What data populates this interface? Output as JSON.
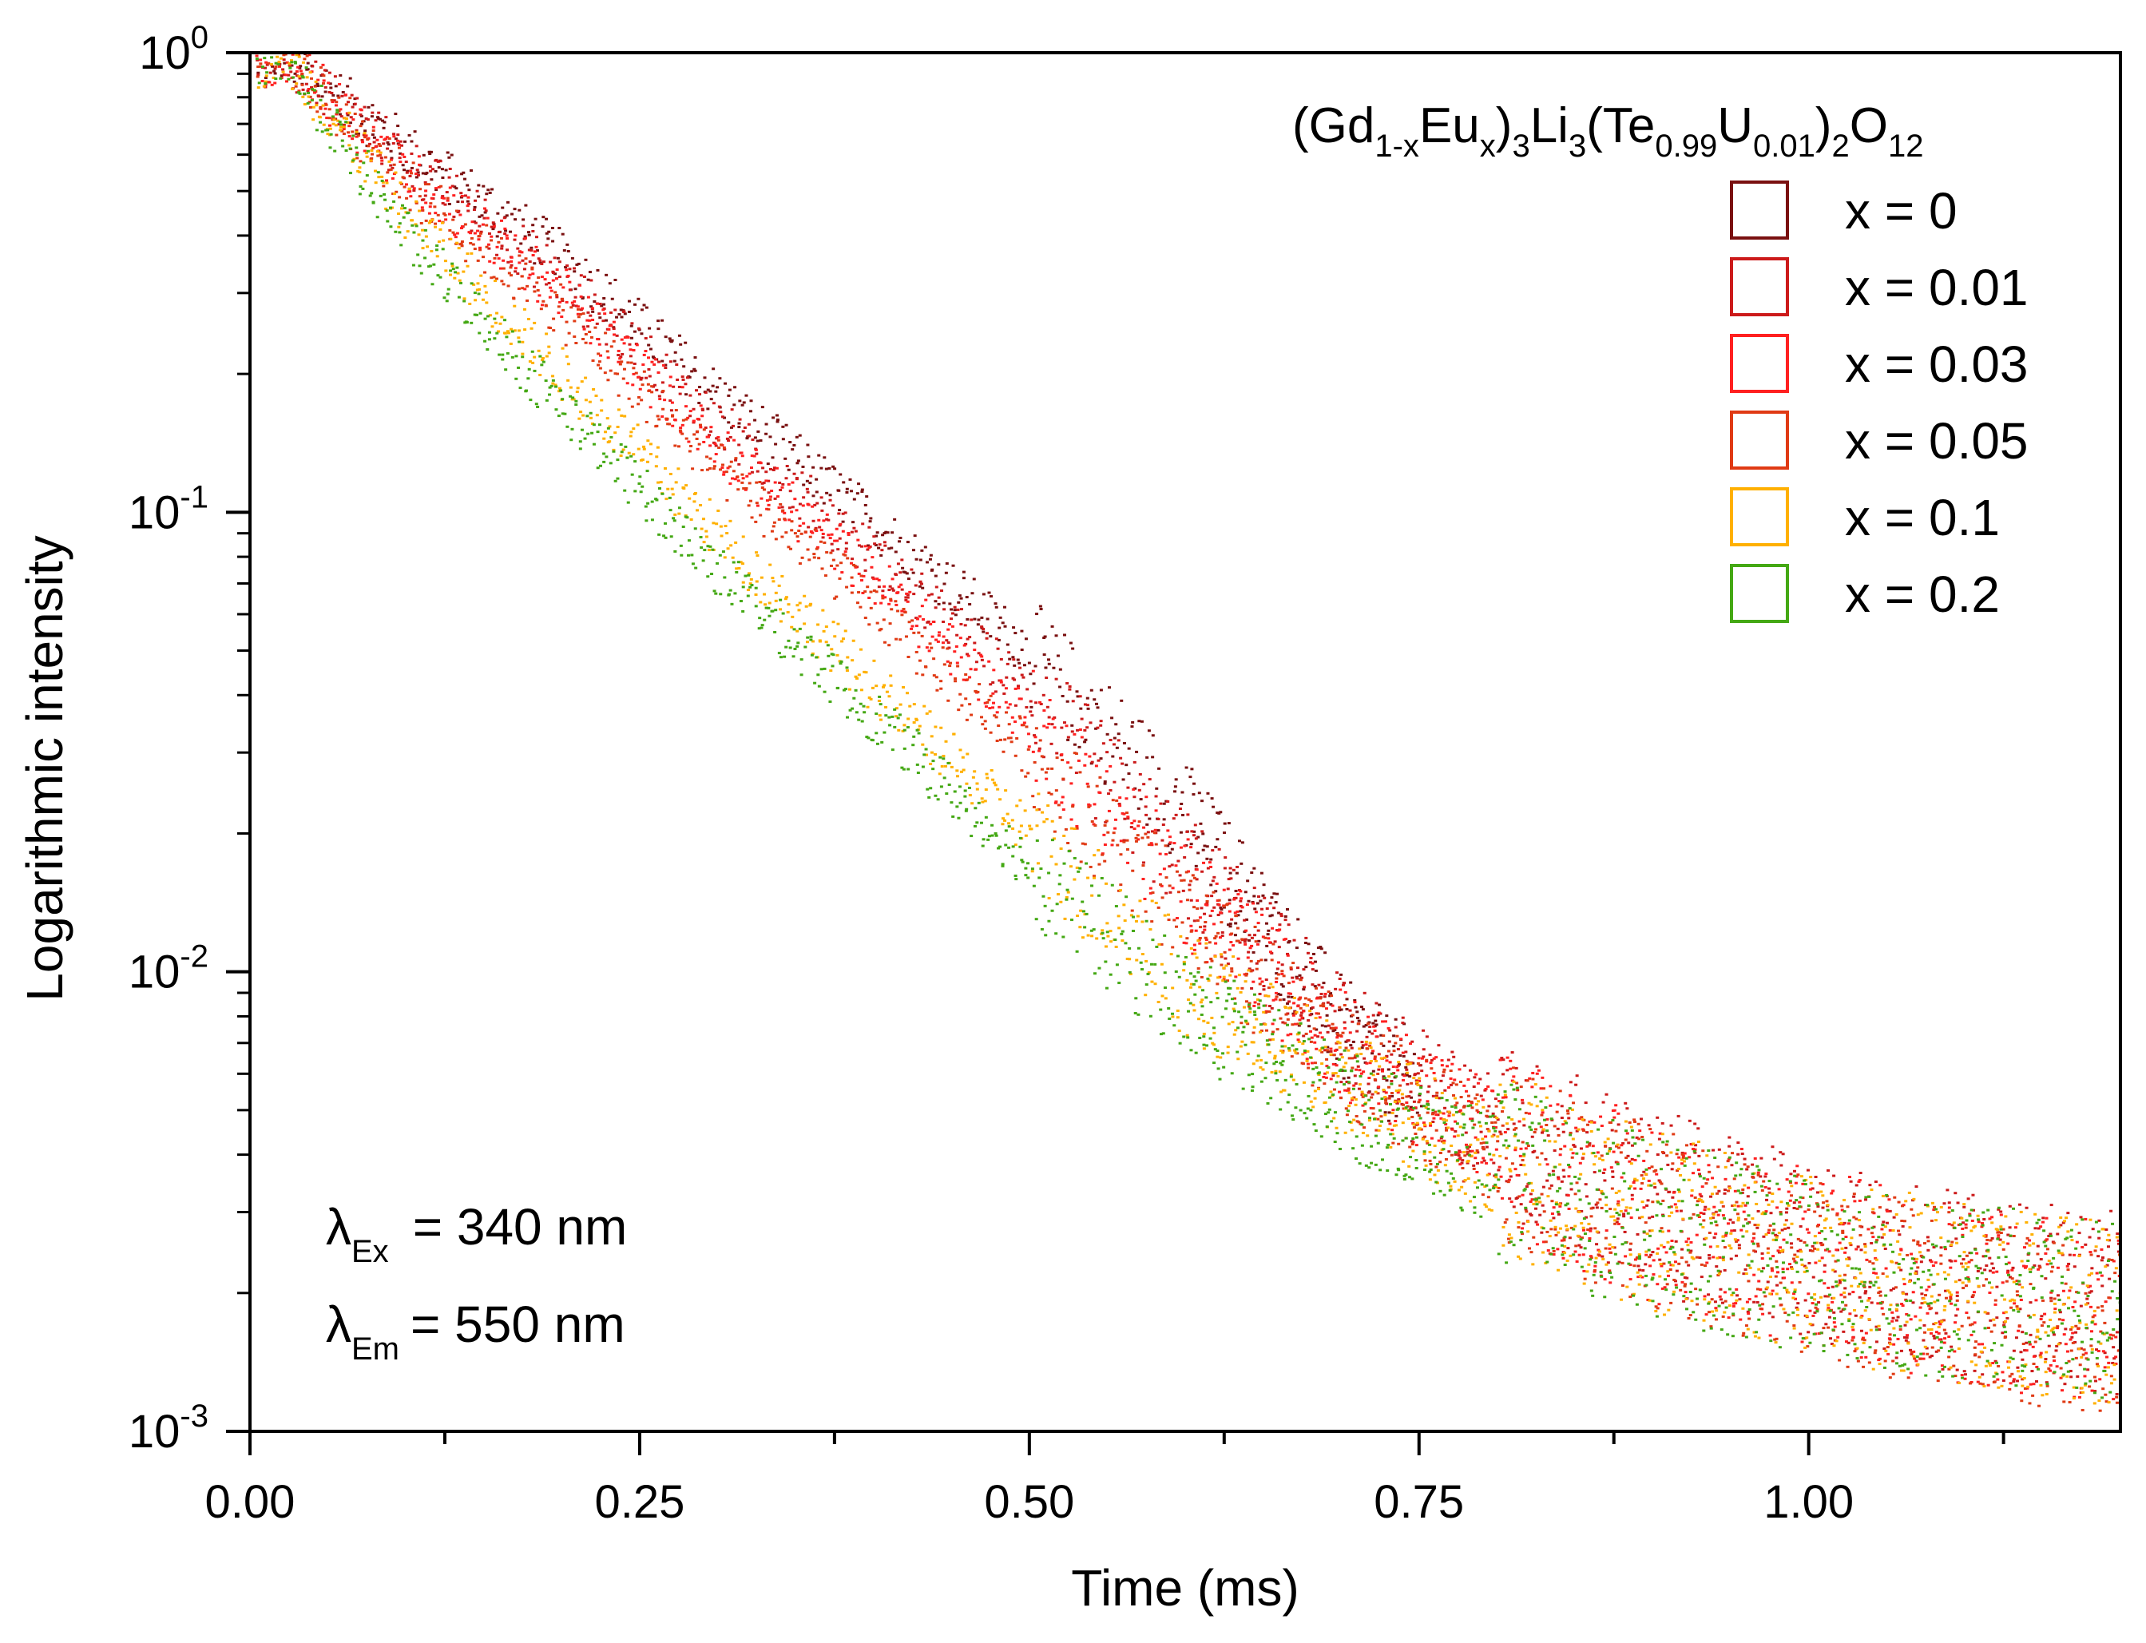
{
  "chart_data": {
    "type": "scatter",
    "title": "",
    "xlabel": "Time (ms)",
    "ylabel": "Logarithmic intensity",
    "xlim": [
      0,
      1.2
    ],
    "ylim": [
      0.001,
      1
    ],
    "yscale": "log",
    "x_tick_labels": [
      "0.00",
      "0.25",
      "0.50",
      "0.75",
      "1.00"
    ],
    "x_ticks": [
      0,
      0.25,
      0.5,
      0.75,
      1.0
    ],
    "x_minor_ticks": [
      0.125,
      0.375,
      0.625,
      0.875,
      1.125
    ],
    "y_ticks": [
      {
        "value": 1,
        "base": "10",
        "exp": "0"
      },
      {
        "value": 0.1,
        "base": "10",
        "exp": "-1"
      },
      {
        "value": 0.01,
        "base": "10",
        "exp": "-2"
      },
      {
        "value": 0.001,
        "base": "10",
        "exp": "-3"
      }
    ],
    "grid": false,
    "legend_position": "top-right",
    "legend_title": {
      "part1": "(Gd",
      "sub1": "1-x",
      "part2": "Eu",
      "sub2": "x",
      "part3": ")",
      "sub3": "3",
      "part4": "Li",
      "sub4": "3",
      "part5": "(Te",
      "sub5": "0.99",
      "part6": "U",
      "sub6": "0.01",
      "part7": ")",
      "sub7": "2",
      "part8": "O",
      "sub8": "12"
    },
    "annotations": {
      "ex_symbol": "λ",
      "ex_sub": "Ex",
      "ex_value": "= 340 nm",
      "em_symbol": "λ",
      "em_sub": "Em",
      "em_value": "= 550 nm"
    },
    "series": [
      {
        "name": "x = 0",
        "color": "#7a1010",
        "x": [
          0,
          0.02,
          0.1,
          0.2,
          0.3,
          0.4,
          0.5,
          0.6,
          0.7,
          0.75
        ],
        "y": [
          0.95,
          1.0,
          0.62,
          0.36,
          0.18,
          0.095,
          0.05,
          0.022,
          0.0075,
          0.0055
        ]
      },
      {
        "name": "x = 0.01",
        "color": "#cc1a1a",
        "x": [
          0,
          0.02,
          0.1,
          0.2,
          0.3,
          0.4,
          0.5,
          0.6,
          0.7,
          0.8,
          0.9,
          1.0,
          1.1,
          1.2
        ],
        "y": [
          0.95,
          1.0,
          0.58,
          0.32,
          0.155,
          0.08,
          0.04,
          0.017,
          0.0075,
          0.0045,
          0.0032,
          0.0025,
          0.0021,
          0.0019
        ]
      },
      {
        "name": "x = 0.03",
        "color": "#ff2020",
        "x": [
          0,
          0.02,
          0.1,
          0.2,
          0.3,
          0.4,
          0.5,
          0.6,
          0.7,
          0.8,
          0.9,
          1.0,
          1.1,
          1.2
        ],
        "y": [
          0.95,
          1.0,
          0.55,
          0.3,
          0.14,
          0.072,
          0.035,
          0.015,
          0.007,
          0.0043,
          0.003,
          0.0024,
          0.002,
          0.0018
        ]
      },
      {
        "name": "x = 0.05",
        "color": "#e03a14",
        "x": [
          0,
          0.02,
          0.1,
          0.2,
          0.3,
          0.4,
          0.5,
          0.6,
          0.7,
          0.8,
          0.9,
          1.0,
          1.1,
          1.2
        ],
        "y": [
          0.95,
          1.0,
          0.52,
          0.27,
          0.125,
          0.062,
          0.03,
          0.013,
          0.0065,
          0.0041,
          0.0029,
          0.0023,
          0.0019,
          0.0017
        ]
      },
      {
        "name": "x = 0.1",
        "color": "#ffb000",
        "x": [
          0,
          0.02,
          0.1,
          0.2,
          0.3,
          0.4,
          0.5,
          0.6,
          0.7,
          0.8,
          0.9,
          1.0,
          1.1,
          1.2
        ],
        "y": [
          0.95,
          1.0,
          0.45,
          0.2,
          0.09,
          0.042,
          0.02,
          0.0095,
          0.0058,
          0.0039,
          0.0029,
          0.0023,
          0.002,
          0.0018
        ]
      },
      {
        "name": "x = 0.2",
        "color": "#44a814",
        "x": [
          0,
          0.02,
          0.1,
          0.2,
          0.3,
          0.4,
          0.5,
          0.6,
          0.7,
          0.8,
          0.9,
          1.0,
          1.1,
          1.2
        ],
        "y": [
          0.95,
          1.0,
          0.4,
          0.17,
          0.075,
          0.036,
          0.017,
          0.0085,
          0.0052,
          0.0037,
          0.0028,
          0.0023,
          0.002,
          0.0018
        ]
      }
    ]
  }
}
